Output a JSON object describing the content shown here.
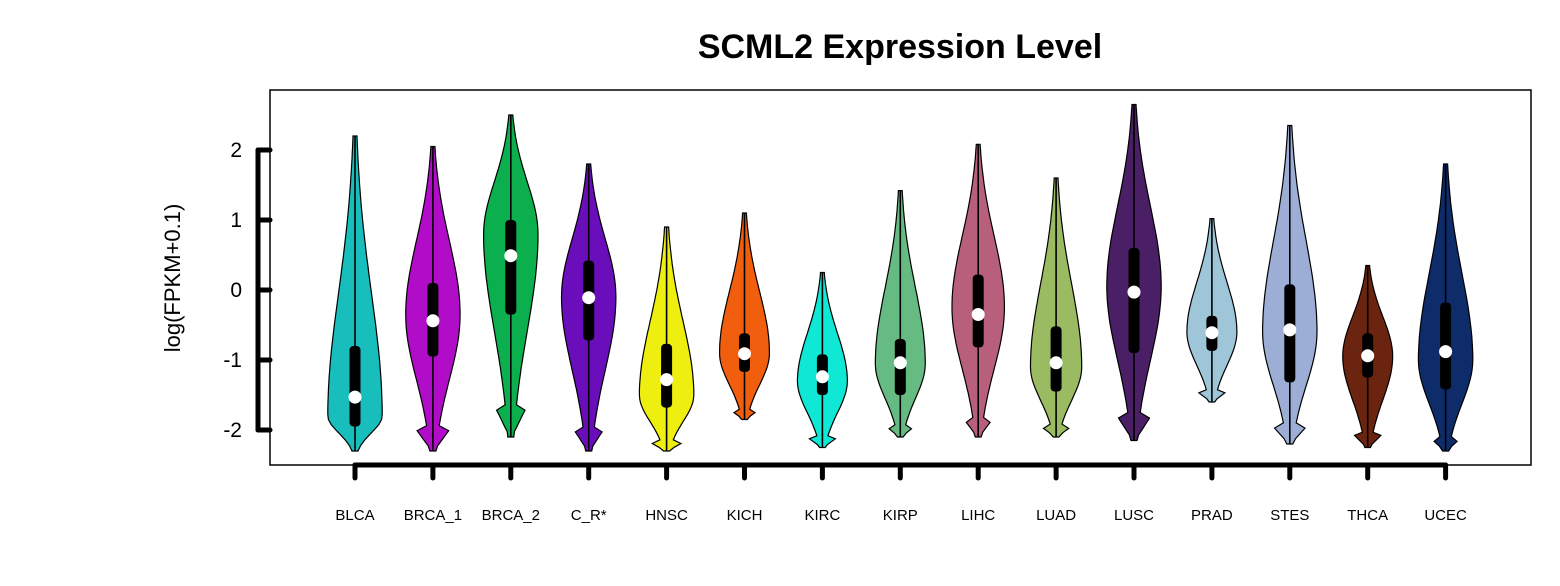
{
  "chart_data": {
    "type": "violin",
    "title": "SCML2 Expression Level",
    "xlabel": "",
    "ylabel": "log(FPKM+0.1)",
    "ylim": [
      -2.5,
      2.85
    ],
    "yticks": [
      2,
      1,
      0,
      -1,
      -2
    ],
    "ytick_labels": [
      "2",
      "1",
      "0",
      "-1",
      "-2"
    ],
    "grid": false,
    "categories": [
      "BLCA",
      "BRCA_1",
      "BRCA_2",
      "C_R*",
      "HNSC",
      "KICH",
      "KIRC",
      "KIRP",
      "LIHC",
      "LUAD",
      "LUSC",
      "PRAD",
      "STES",
      "THCA",
      "UCEC"
    ],
    "colors": [
      "#17BEBB",
      "#B10DC9",
      "#0BAF4E",
      "#6A0DBA",
      "#EEEE11",
      "#F05E0E",
      "#10E8D6",
      "#66BB83",
      "#B85F7C",
      "#9BBB63",
      "#4A1F66",
      "#9FC6D8",
      "#9DAED6",
      "#6B2410",
      "#0E2C6A"
    ],
    "series": [
      {
        "name": "BLCA",
        "min": -2.3,
        "max": 2.2,
        "q1": -1.95,
        "q3": -0.8,
        "median": -1.53,
        "bulge": -1.8,
        "width": 0.85
      },
      {
        "name": "BRCA_1",
        "min": -2.3,
        "max": 2.05,
        "q1": -0.95,
        "q3": 0.1,
        "median": -0.44,
        "bulge": -0.35,
        "width": 0.85
      },
      {
        "name": "BRCA_2",
        "min": -2.1,
        "max": 2.5,
        "q1": -0.35,
        "q3": 1.0,
        "median": 0.49,
        "bulge": 0.8,
        "width": 0.85
      },
      {
        "name": "C_R*",
        "min": -2.3,
        "max": 1.8,
        "q1": -0.72,
        "q3": 0.42,
        "median": -0.11,
        "bulge": -0.1,
        "width": 0.85
      },
      {
        "name": "HNSC",
        "min": -2.3,
        "max": 0.9,
        "q1": -1.68,
        "q3": -0.77,
        "median": -1.28,
        "bulge": -1.5,
        "width": 0.85
      },
      {
        "name": "KICH",
        "min": -1.85,
        "max": 1.1,
        "q1": -1.17,
        "q3": -0.62,
        "median": -0.91,
        "bulge": -0.9,
        "width": 0.78
      },
      {
        "name": "KIRC",
        "min": -2.25,
        "max": 0.25,
        "q1": -1.5,
        "q3": -0.92,
        "median": -1.24,
        "bulge": -1.3,
        "width": 0.78
      },
      {
        "name": "KIRP",
        "min": -2.1,
        "max": 1.42,
        "q1": -1.5,
        "q3": -0.7,
        "median": -1.04,
        "bulge": -1.05,
        "width": 0.78
      },
      {
        "name": "LIHC",
        "min": -2.1,
        "max": 2.08,
        "q1": -0.82,
        "q3": 0.22,
        "median": -0.35,
        "bulge": -0.25,
        "width": 0.82
      },
      {
        "name": "LUAD",
        "min": -2.1,
        "max": 1.6,
        "q1": -1.45,
        "q3": -0.52,
        "median": -1.04,
        "bulge": -1.1,
        "width": 0.8
      },
      {
        "name": "LUSC",
        "min": -2.15,
        "max": 2.65,
        "q1": -0.9,
        "q3": 0.6,
        "median": -0.03,
        "bulge": 0.05,
        "width": 0.85
      },
      {
        "name": "PRAD",
        "min": -1.6,
        "max": 1.02,
        "q1": -0.87,
        "q3": -0.37,
        "median": -0.61,
        "bulge": -0.6,
        "width": 0.78
      },
      {
        "name": "STES",
        "min": -2.2,
        "max": 2.35,
        "q1": -1.32,
        "q3": 0.08,
        "median": -0.57,
        "bulge": -0.6,
        "width": 0.85
      },
      {
        "name": "THCA",
        "min": -2.25,
        "max": 0.35,
        "q1": -1.25,
        "q3": -0.62,
        "median": -0.94,
        "bulge": -0.95,
        "width": 0.78
      },
      {
        "name": "UCEC",
        "min": -2.3,
        "max": 1.8,
        "q1": -1.42,
        "q3": -0.18,
        "median": -0.88,
        "bulge": -1.0,
        "width": 0.85
      }
    ]
  }
}
